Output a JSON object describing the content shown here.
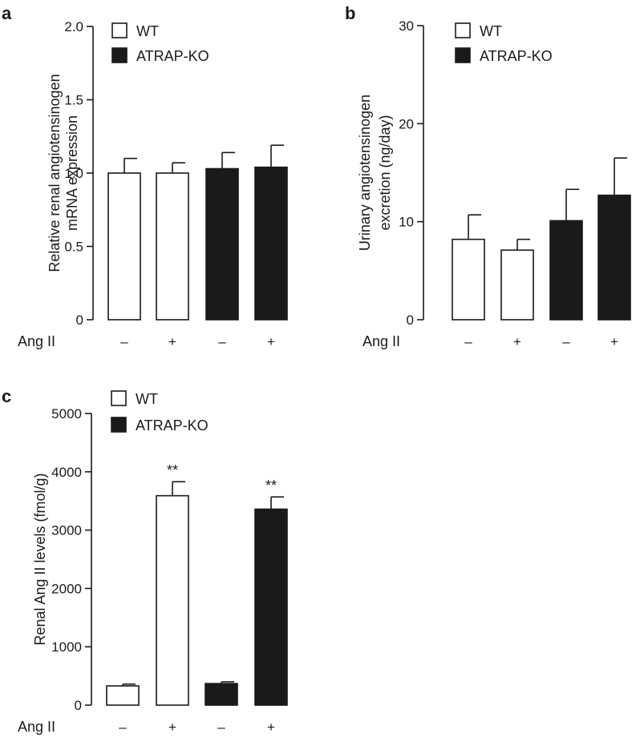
{
  "legend": {
    "wt": "WT",
    "ko": "ATRAP-KO"
  },
  "colors": {
    "wt_fill": "#ffffff",
    "ko_fill": "#1a1a1a",
    "stroke": "#1a1a1a"
  },
  "x_row_label": "Ang II",
  "chart_data": [
    {
      "panel": "a",
      "type": "bar",
      "ylabel_lines": [
        "Relative renal angiotensinogen",
        "mRNA expression"
      ],
      "ylim": [
        0,
        2.0
      ],
      "yticks": [
        "0",
        "0.5",
        "1.0",
        "1.5",
        "2.0"
      ],
      "ytick_values": [
        0,
        0.5,
        1.0,
        1.5,
        2.0
      ],
      "categories": [
        "–",
        "+",
        "–",
        "+"
      ],
      "groups": [
        "WT",
        "WT",
        "ATRAP-KO",
        "ATRAP-KO"
      ],
      "values": [
        1.0,
        1.0,
        1.03,
        1.04
      ],
      "errors": [
        0.1,
        0.07,
        0.11,
        0.15
      ],
      "annotations": [
        "",
        "",
        "",
        ""
      ]
    },
    {
      "panel": "b",
      "type": "bar",
      "ylabel_lines": [
        "Urinary angiotensinogen",
        "excretion (ng/day)"
      ],
      "ylim": [
        0,
        30
      ],
      "yticks": [
        "0",
        "10",
        "20",
        "30"
      ],
      "ytick_values": [
        0,
        10,
        20,
        30
      ],
      "categories": [
        "–",
        "+",
        "–",
        "+"
      ],
      "groups": [
        "WT",
        "WT",
        "ATRAP-KO",
        "ATRAP-KO"
      ],
      "values": [
        8.2,
        7.1,
        10.1,
        12.7
      ],
      "errors": [
        2.5,
        1.1,
        3.2,
        3.8
      ],
      "annotations": [
        "",
        "",
        "",
        ""
      ]
    },
    {
      "panel": "c",
      "type": "bar",
      "ylabel_lines": [
        "Renal Ang II levels (fmol/g)"
      ],
      "ylim": [
        0,
        5000
      ],
      "yticks": [
        "0",
        "1000",
        "2000",
        "3000",
        "4000",
        "5000"
      ],
      "ytick_values": [
        0,
        1000,
        2000,
        3000,
        4000,
        5000
      ],
      "categories": [
        "–",
        "+",
        "–",
        "+"
      ],
      "groups": [
        "WT",
        "WT",
        "ATRAP-KO",
        "ATRAP-KO"
      ],
      "values": [
        330,
        3590,
        370,
        3360
      ],
      "errors": [
        30,
        240,
        30,
        210
      ],
      "annotations": [
        "",
        "**",
        "",
        "**"
      ]
    }
  ]
}
